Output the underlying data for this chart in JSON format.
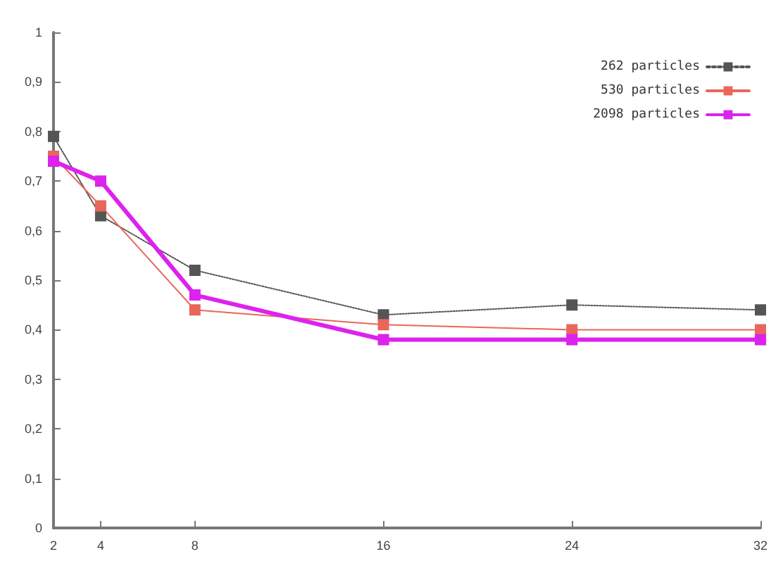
{
  "chart_data": {
    "type": "line",
    "x": [
      2,
      4,
      8,
      16,
      24,
      32
    ],
    "xlim": [
      2,
      32
    ],
    "xticks": [
      2,
      4,
      8,
      16,
      24,
      32
    ],
    "ylim": [
      0,
      1
    ],
    "yticks": [
      0,
      {
        "value": 0.1,
        "label": "0,1"
      },
      {
        "value": 0.2,
        "label": "0,2"
      },
      {
        "value": 0.3,
        "label": "0,3"
      },
      {
        "value": 0.4,
        "label": "0,4"
      },
      {
        "value": 0.5,
        "label": "0,5"
      },
      {
        "value": 0.6,
        "label": "0,6"
      },
      {
        "value": 0.7,
        "label": "0,7"
      },
      {
        "value": 0.8,
        "label": "0,8"
      },
      {
        "value": 0.9,
        "label": "0,9"
      },
      1
    ],
    "series": [
      {
        "name": "262 particles",
        "color": "#555555",
        "line_style": "dotted",
        "values": [
          0.79,
          0.63,
          0.52,
          0.43,
          0.45,
          0.44
        ]
      },
      {
        "name": "530 particles",
        "color": "#e8675a",
        "line_style": "solid",
        "values": [
          0.75,
          0.65,
          0.44,
          0.41,
          0.4,
          0.4
        ]
      },
      {
        "name": "2098 particles",
        "color": "#dd22ee",
        "line_style": "solid",
        "values": [
          0.74,
          0.7,
          0.47,
          0.38,
          0.38,
          0.38
        ]
      }
    ],
    "marker": "square",
    "grid": false,
    "legend": "top right"
  }
}
